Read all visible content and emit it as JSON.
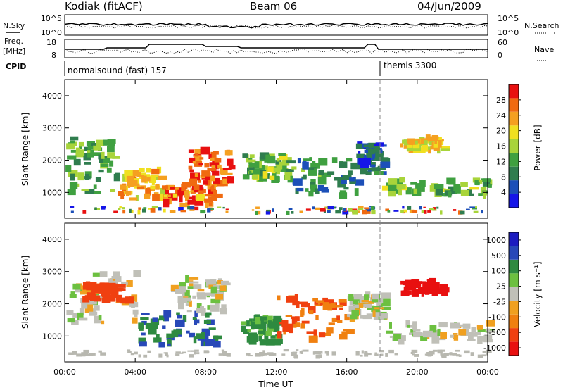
{
  "header": {
    "site": "Kodiak (fitACF)",
    "beam": "Beam 06",
    "date": "04/Jun/2009"
  },
  "status_panels": {
    "nsky_label": "N.Sky",
    "nsky_ticks": [
      "10^5",
      "10^0"
    ],
    "nsearch_label": "N.Search",
    "nsearch_ticks": [
      "10^5",
      "10^0"
    ],
    "freq_label_1": "Freq.",
    "freq_label_2": "[MHz]",
    "freq_ticks": [
      "18",
      "8"
    ],
    "nave_label": "Nave",
    "nave_ticks": [
      "60",
      "0"
    ],
    "cpid_label": "CPID",
    "cpid_segments": [
      "normalsound (fast) 157",
      "themis 3300"
    ]
  },
  "colors": {
    "power_scale": [
      "#1515e8",
      "#1c4fb8",
      "#2f7d4e",
      "#3fa040",
      "#a8d43a",
      "#f0e020",
      "#f5a020",
      "#f06a10",
      "#e81010"
    ],
    "velocity_scale": [
      "#1c1cc0",
      "#2848b8",
      "#2e8a40",
      "#6cc040",
      "#c0c0b8",
      "#f0a020",
      "#f08010",
      "#f04010",
      "#e81010"
    ],
    "ground_scatter": "#b8b8b0"
  },
  "chart_data": [
    {
      "type": "heatmap",
      "name": "power",
      "ylabel": "Slant Range [km]",
      "yticks": [
        "1000",
        "2000",
        "3000",
        "4000"
      ],
      "ylim": [
        200,
        4500
      ],
      "xlim_hours": [
        0,
        24
      ],
      "colorbar_label": "Power [dB]",
      "colorbar_ticks": [
        "4",
        "8",
        "12",
        "16",
        "20",
        "24",
        "28"
      ],
      "bands": [
        {
          "t0": 0.0,
          "t1": 3.0,
          "r0": 1000,
          "r1": 2700,
          "v": 12
        },
        {
          "t0": 3.0,
          "t1": 5.5,
          "r0": 800,
          "r1": 1700,
          "v": 22
        },
        {
          "t0": 5.5,
          "t1": 8.5,
          "r0": 600,
          "r1": 1300,
          "v": 26
        },
        {
          "t0": 7.0,
          "t1": 9.3,
          "r0": 1200,
          "r1": 2300,
          "v": 28
        },
        {
          "t0": 10.0,
          "t1": 12.5,
          "r0": 1400,
          "r1": 2200,
          "v": 14
        },
        {
          "t0": 12.5,
          "t1": 16.5,
          "r0": 900,
          "r1": 2100,
          "v": 10
        },
        {
          "t0": 16.5,
          "t1": 18.0,
          "r0": 1600,
          "r1": 2500,
          "v": 6
        },
        {
          "t0": 19.0,
          "t1": 21.5,
          "r0": 2300,
          "r1": 2700,
          "v": 20
        },
        {
          "t0": 18.0,
          "t1": 24.0,
          "r0": 900,
          "r1": 1400,
          "v": 14
        }
      ]
    },
    {
      "type": "heatmap",
      "name": "velocity",
      "ylabel": "Slant Range [km]",
      "yticks": [
        "1000",
        "2000",
        "3000",
        "4000"
      ],
      "ylim": [
        200,
        4500
      ],
      "xlim_hours": [
        0,
        24
      ],
      "xticks": [
        "00:00",
        "04:00",
        "08:00",
        "12:00",
        "16:00",
        "20:00",
        "00:00"
      ],
      "xlabel": "Time UT",
      "colorbar_label": "Velocity [m s⁻¹]",
      "colorbar_ticks": [
        "1000",
        "500",
        "100",
        "25",
        "-25",
        "-100",
        "-500",
        "-1000"
      ],
      "bands": [
        {
          "t0": 0.0,
          "t1": 4.0,
          "r0": 1400,
          "r1": 3000,
          "v": 0
        },
        {
          "t0": 1.0,
          "t1": 3.5,
          "r0": 2100,
          "r1": 2600,
          "v": -300
        },
        {
          "t0": 4.0,
          "t1": 8.5,
          "r0": 700,
          "r1": 1700,
          "v": 200
        },
        {
          "t0": 6.0,
          "t1": 9.0,
          "r0": 1700,
          "r1": 2800,
          "v": 0
        },
        {
          "t0": 10.0,
          "t1": 12.0,
          "r0": 800,
          "r1": 1600,
          "v": 120
        },
        {
          "t0": 12.0,
          "t1": 16.0,
          "r0": 900,
          "r1": 2200,
          "v": -200
        },
        {
          "t0": 16.0,
          "t1": 18.0,
          "r0": 1500,
          "r1": 2300,
          "v": 0
        },
        {
          "t0": 19.0,
          "t1": 21.5,
          "r0": 2300,
          "r1": 2700,
          "v": -600
        },
        {
          "t0": 18.0,
          "t1": 24.0,
          "r0": 800,
          "r1": 1400,
          "v": 0
        }
      ]
    }
  ]
}
